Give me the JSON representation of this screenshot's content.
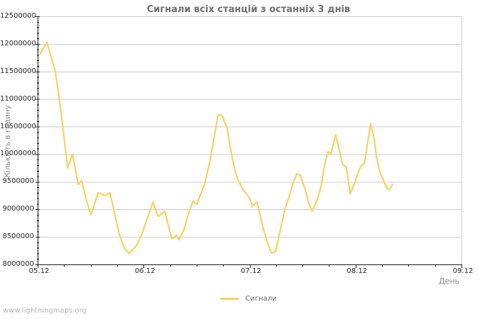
{
  "page": {
    "watermark": "www.lightningmaps.org"
  },
  "chart_data": {
    "type": "line",
    "title": "Сигнали всіх станцій з останніх 3 днів",
    "xlabel": "День",
    "ylabel": "Кількість в годину",
    "grid": "horizontal-only",
    "legend_position": "bottom-center",
    "ylim": [
      8000000,
      12500000
    ],
    "x_days_span": 4,
    "x_tick_labels": [
      "05.12",
      "06.12",
      "07.12",
      "08.12",
      "09.12"
    ],
    "x_minor_tick_hours": 6,
    "y_ticks": [
      8000000,
      8500000,
      9000000,
      9500000,
      10000000,
      10500000,
      11000000,
      11500000,
      12000000,
      12500000
    ],
    "y_tick_labels": [
      "8000000",
      "8500000",
      "9000000",
      "9500000",
      "10000000",
      "10500000",
      "11000000",
      "11500000",
      "12000000",
      "12500000"
    ],
    "y_minor_tick_step": 100000,
    "colors": {
      "line": "#f6d263",
      "grid": "#cccccc",
      "axis": "#1a1a1a",
      "title": "#6f6f6f",
      "axis_title": "#8c8c8c",
      "tick_label": "#262626",
      "legend_text": "#666666",
      "watermark": "#b5b5b5"
    },
    "legend": {
      "entries": [
        {
          "label": "Сигнали",
          "color": "#f6d263"
        }
      ]
    },
    "series": [
      {
        "name": "Сигнали",
        "x_hours_from_05_12_00h": [
          0.6,
          2.1,
          4.0,
          5.1,
          6.8,
          7.9,
          9.2,
          10.0,
          11.1,
          12.1,
          13.7,
          15.3,
          16.4,
          17.5,
          18.5,
          19.6,
          20.7,
          21.7,
          22.5,
          23.6,
          26.1,
          27.3,
          28.8,
          30.4,
          31.4,
          32.0,
          33.0,
          34.1,
          35.2,
          36.0,
          37.8,
          38.9,
          40.0,
          40.8,
          41.3,
          41.8,
          42.9,
          43.7,
          44.5,
          45.3,
          46.6,
          48.1,
          48.6,
          49.7,
          51.0,
          52.1,
          52.9,
          53.9,
          55.0,
          56.1,
          57.1,
          57.9,
          58.7,
          59.5,
          60.6,
          61.4,
          62.2,
          63.4,
          64.2,
          65.0,
          65.8,
          66.4,
          67.5,
          68.3,
          69.1,
          69.9,
          70.8,
          71.9,
          72.7,
          73.5,
          74.0,
          74.6,
          75.4,
          76.2,
          76.7,
          77.5,
          79.1,
          79.7,
          80.4
        ],
        "values": [
          11820000,
          12030000,
          11500000,
          10900000,
          9750000,
          10000000,
          9450000,
          9520000,
          9150000,
          8900000,
          9300000,
          9250000,
          9300000,
          8900000,
          8550000,
          8300000,
          8200000,
          8280000,
          8350000,
          8550000,
          9130000,
          8870000,
          8960000,
          8460000,
          8530000,
          8450000,
          8600000,
          8900000,
          9150000,
          9090000,
          9450000,
          9830000,
          10310000,
          10690000,
          10720000,
          10690000,
          10480000,
          10090000,
          9770000,
          9540000,
          9350000,
          9190000,
          9060000,
          9130000,
          8680000,
          8380000,
          8210000,
          8230000,
          8640000,
          9030000,
          9260000,
          9490000,
          9640000,
          9620000,
          9360000,
          9100000,
          8970000,
          9190000,
          9410000,
          9810000,
          10050000,
          10000000,
          10350000,
          10090000,
          9810000,
          9770000,
          9280000,
          9490000,
          9700000,
          9810000,
          9830000,
          10130000,
          10550000,
          10300000,
          9960000,
          9680000,
          9380000,
          9360000,
          9450000
        ]
      }
    ]
  }
}
